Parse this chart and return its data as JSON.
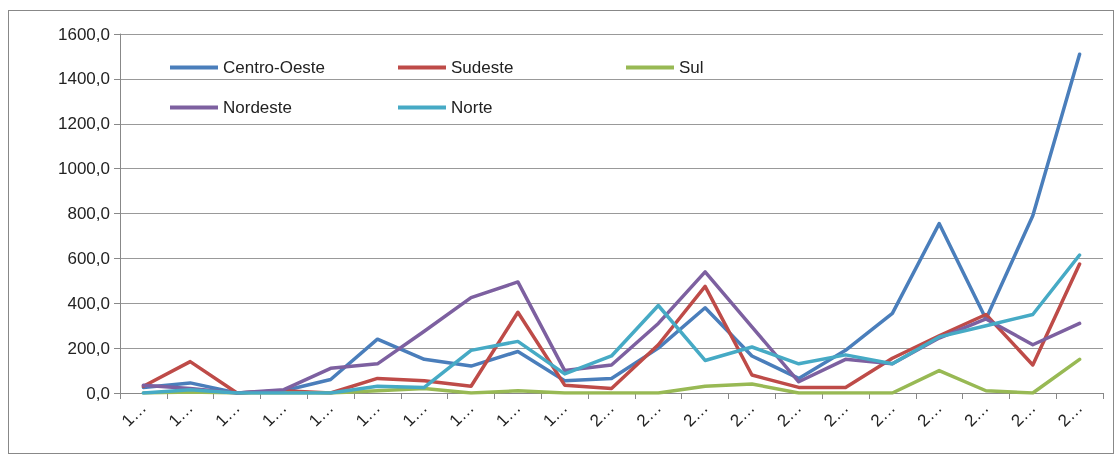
{
  "chart_data": {
    "type": "line",
    "categories": [
      "1…",
      "1…",
      "1…",
      "1…",
      "1…",
      "1…",
      "1…",
      "1…",
      "1…",
      "1…",
      "2…",
      "2…",
      "2…",
      "2…",
      "2…",
      "2…",
      "2…",
      "2…",
      "2…",
      "2…",
      "2…"
    ],
    "series": [
      {
        "name": "Centro-Oeste",
        "color": "#4a7ebb",
        "values": [
          25,
          45,
          0,
          10,
          60,
          240,
          150,
          120,
          185,
          55,
          65,
          200,
          380,
          165,
          65,
          190,
          355,
          755,
          330,
          790,
          1510
        ]
      },
      {
        "name": "Sudeste",
        "color": "#be4b48",
        "values": [
          30,
          140,
          0,
          10,
          0,
          65,
          55,
          30,
          360,
          35,
          20,
          215,
          475,
          80,
          25,
          25,
          155,
          255,
          350,
          125,
          575
        ]
      },
      {
        "name": "Sul",
        "color": "#98b954",
        "values": [
          0,
          5,
          0,
          0,
          0,
          10,
          20,
          0,
          10,
          0,
          0,
          0,
          30,
          40,
          0,
          0,
          0,
          100,
          10,
          0,
          150
        ]
      },
      {
        "name": "Nordeste",
        "color": "#7d60a0",
        "values": [
          35,
          20,
          0,
          15,
          110,
          130,
          275,
          425,
          495,
          100,
          125,
          310,
          540,
          295,
          50,
          150,
          130,
          245,
          330,
          215,
          310
        ]
      },
      {
        "name": "Norte",
        "color": "#46aac5",
        "values": [
          0,
          15,
          0,
          0,
          0,
          30,
          25,
          190,
          230,
          85,
          165,
          390,
          145,
          205,
          130,
          170,
          130,
          250,
          300,
          350,
          615
        ]
      }
    ],
    "ylim": [
      0,
      1600
    ],
    "yticks": [
      {
        "value": 0,
        "label": "0,0"
      },
      {
        "value": 200,
        "label": "200,0"
      },
      {
        "value": 400,
        "label": "400,0"
      },
      {
        "value": 600,
        "label": "600,0"
      },
      {
        "value": 800,
        "label": "800,0"
      },
      {
        "value": 1000,
        "label": "1000,0"
      },
      {
        "value": 1200,
        "label": "1200,0"
      },
      {
        "value": 1400,
        "label": "1400,0"
      },
      {
        "value": 1600,
        "label": "1600,0"
      }
    ],
    "grid": "y",
    "legend": "top left",
    "marker": "none",
    "line_style": "solid"
  }
}
